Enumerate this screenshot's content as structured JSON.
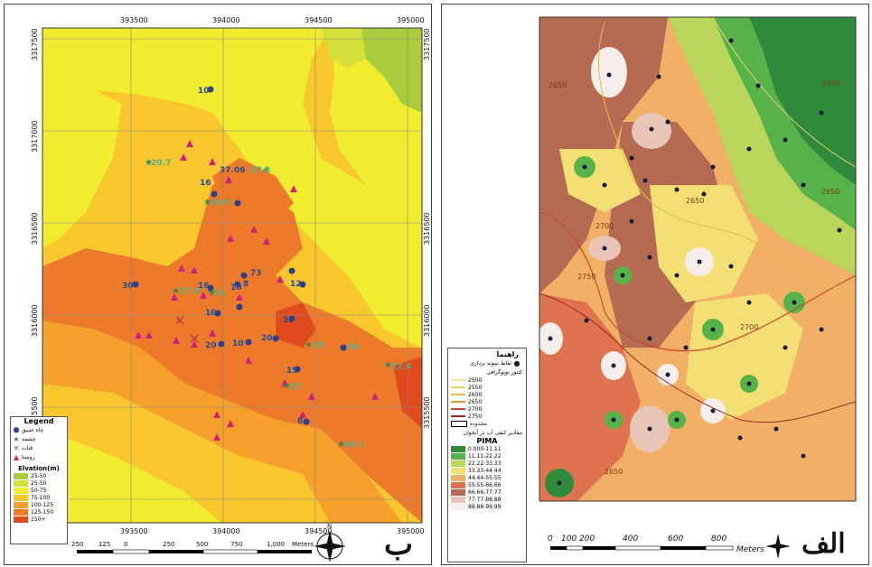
{
  "panel_b": {
    "letter": "ب",
    "x_ticks": [
      "393500",
      "394000",
      "394500",
      "395000"
    ],
    "y_ticks": [
      "3317500",
      "3317000",
      "3316500",
      "3316000",
      "3315500",
      "3315000"
    ],
    "scale_labels": [
      "250",
      "125",
      "0",
      "250",
      "500",
      "750",
      "1,000"
    ],
    "scale_unit": "Meters",
    "legend": {
      "title": "Legend",
      "symbols": [
        {
          "label": "چاه عمیق",
          "color": "#2c3e8c",
          "icon": "pentagon-icon"
        },
        {
          "label": "چشمه",
          "color": "#2e8b57",
          "icon": "star-icon"
        },
        {
          "label": "قنات",
          "color": "#c0304a",
          "icon": "cross-icon"
        },
        {
          "label": "روستا",
          "color": "#d0207a",
          "icon": "triangle-icon"
        }
      ],
      "elev_title": "Elvation(m)",
      "elev_classes": [
        {
          "label": "25-50",
          "color": "#a8cc3c"
        },
        {
          "label": "25-50",
          "color": "#d4e03a"
        },
        {
          "label": "50-75",
          "color": "#f2ec2e"
        },
        {
          "label": "75-100",
          "color": "#f7c72d"
        },
        {
          "label": "100-125",
          "color": "#f4a02a"
        },
        {
          "label": "125-150",
          "color": "#ec7a2a"
        },
        {
          "label": "150+",
          "color": "#e04a1e"
        }
      ]
    },
    "point_labels": [
      "10",
      "20.7",
      "37.06",
      "17.8",
      "16",
      "20.5",
      "30",
      "17.8",
      "16",
      "31",
      "10",
      "73",
      "12",
      "8",
      "10",
      "10",
      "20",
      "20",
      "35",
      "10",
      "15",
      "17",
      "8",
      "17.4",
      "10.3",
      "30"
    ]
  },
  "panel_a": {
    "letter": "الف",
    "scale_labels": [
      "0",
      "100",
      "200",
      "400",
      "600",
      "800"
    ],
    "scale_unit": "Meters",
    "legend": {
      "title": "راهنما",
      "sample_label": "نقاط نمونه برداری",
      "contour_title": "کنتور توپوگرافی",
      "contours": [
        {
          "label": "2500",
          "color": "#f3e58f"
        },
        {
          "label": "2550",
          "color": "#f0d26a"
        },
        {
          "label": "2600",
          "color": "#eab94e"
        },
        {
          "label": "2650",
          "color": "#e39a38"
        },
        {
          "label": "2700",
          "color": "#c94a2a"
        },
        {
          "label": "2750",
          "color": "#9a2a22"
        }
      ],
      "boundary_label": "محدوده",
      "index_title": "مقادیر کیفی آب در آبخوان",
      "index_name": "PIMA",
      "classes": [
        {
          "label": "0.000-11.11",
          "color": "#2f8a3c"
        },
        {
          "label": "11.11-22.22",
          "color": "#58b24a"
        },
        {
          "label": "22.22-33.33",
          "color": "#b9d65a"
        },
        {
          "label": "33.33-44.44",
          "color": "#f3df73"
        },
        {
          "label": "44.44-55.55",
          "color": "#f2b067"
        },
        {
          "label": "55.55-66.66",
          "color": "#e0734f"
        },
        {
          "label": "66.66-77.77",
          "color": "#b56a52"
        },
        {
          "label": "77.77-88.88",
          "color": "#e9c5b8"
        },
        {
          "label": "88.88-99.99",
          "color": "#f6eeea"
        }
      ]
    },
    "contour_labels": [
      "2650",
      "2700",
      "2750",
      "2650",
      "2650",
      "2650",
      "2700",
      "2650"
    ]
  }
}
